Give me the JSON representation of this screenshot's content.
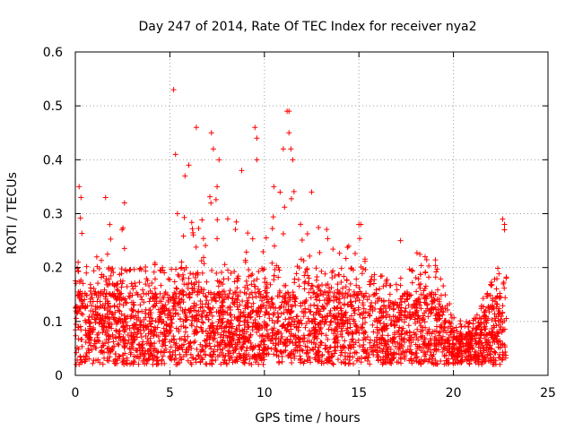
{
  "chart_data": {
    "type": "scatter",
    "title": "Day 247 of 2014, Rate Of TEC Index for receiver nya2",
    "xlabel": "GPS time / hours",
    "ylabel": "ROTI / TECUs",
    "xlim": [
      0,
      25
    ],
    "ylim": [
      0,
      0.6
    ],
    "xticks": [
      0,
      5,
      10,
      15,
      20,
      25
    ],
    "yticks": [
      0,
      0.1,
      0.2,
      0.3,
      0.4,
      0.5,
      0.6
    ],
    "xtick_labels": [
      "0",
      "5",
      "10",
      "15",
      "20",
      "25"
    ],
    "ytick_labels": [
      "0",
      "0.1",
      "0.2",
      "0.3",
      "0.4",
      "0.5",
      "0.6"
    ],
    "grid": true,
    "marker": "plus",
    "color": "#ff0000",
    "x_range_of_data": [
      0,
      22.8
    ],
    "dense_band": [
      0.02,
      0.2
    ],
    "envelope": [
      {
        "x": 0.0,
        "y": 0.25
      },
      {
        "x": 0.3,
        "y": 0.33
      },
      {
        "x": 1.0,
        "y": 0.24
      },
      {
        "x": 1.8,
        "y": 0.33
      },
      {
        "x": 2.5,
        "y": 0.31
      },
      {
        "x": 3.5,
        "y": 0.24
      },
      {
        "x": 4.5,
        "y": 0.22
      },
      {
        "x": 5.5,
        "y": 0.3
      },
      {
        "x": 6.5,
        "y": 0.36
      },
      {
        "x": 7.5,
        "y": 0.35
      },
      {
        "x": 8.5,
        "y": 0.34
      },
      {
        "x": 9.5,
        "y": 0.38
      },
      {
        "x": 10.5,
        "y": 0.35
      },
      {
        "x": 11.2,
        "y": 0.42
      },
      {
        "x": 12.0,
        "y": 0.33
      },
      {
        "x": 13.0,
        "y": 0.28
      },
      {
        "x": 14.0,
        "y": 0.25
      },
      {
        "x": 15.0,
        "y": 0.28
      },
      {
        "x": 16.0,
        "y": 0.19
      },
      {
        "x": 17.0,
        "y": 0.17
      },
      {
        "x": 18.0,
        "y": 0.24
      },
      {
        "x": 19.0,
        "y": 0.23
      },
      {
        "x": 20.0,
        "y": 0.11
      },
      {
        "x": 21.0,
        "y": 0.1
      },
      {
        "x": 22.0,
        "y": 0.18
      },
      {
        "x": 22.7,
        "y": 0.29
      }
    ],
    "outliers": [
      {
        "x": 0.2,
        "y": 0.35
      },
      {
        "x": 0.3,
        "y": 0.33
      },
      {
        "x": 1.6,
        "y": 0.33
      },
      {
        "x": 2.6,
        "y": 0.32
      },
      {
        "x": 5.2,
        "y": 0.53
      },
      {
        "x": 5.3,
        "y": 0.41
      },
      {
        "x": 5.4,
        "y": 0.3
      },
      {
        "x": 5.8,
        "y": 0.37
      },
      {
        "x": 6.0,
        "y": 0.39
      },
      {
        "x": 6.4,
        "y": 0.46
      },
      {
        "x": 7.2,
        "y": 0.45
      },
      {
        "x": 7.3,
        "y": 0.42
      },
      {
        "x": 7.5,
        "y": 0.35
      },
      {
        "x": 7.6,
        "y": 0.4
      },
      {
        "x": 8.8,
        "y": 0.38
      },
      {
        "x": 9.5,
        "y": 0.46
      },
      {
        "x": 9.6,
        "y": 0.44
      },
      {
        "x": 9.6,
        "y": 0.4
      },
      {
        "x": 10.5,
        "y": 0.35
      },
      {
        "x": 11.0,
        "y": 0.42
      },
      {
        "x": 11.2,
        "y": 0.49
      },
      {
        "x": 11.3,
        "y": 0.49
      },
      {
        "x": 11.3,
        "y": 0.45
      },
      {
        "x": 11.4,
        "y": 0.42
      },
      {
        "x": 11.5,
        "y": 0.4
      },
      {
        "x": 12.5,
        "y": 0.34
      },
      {
        "x": 15.0,
        "y": 0.28
      },
      {
        "x": 15.1,
        "y": 0.28
      },
      {
        "x": 17.2,
        "y": 0.25
      },
      {
        "x": 18.5,
        "y": 0.22
      },
      {
        "x": 22.6,
        "y": 0.29
      },
      {
        "x": 22.7,
        "y": 0.28
      },
      {
        "x": 22.7,
        "y": 0.27
      }
    ]
  }
}
